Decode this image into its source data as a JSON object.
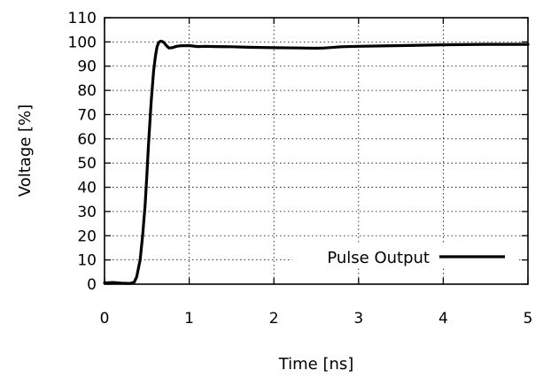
{
  "chart_data": {
    "type": "line",
    "xlabel": "Time [ns]",
    "ylabel": "Voltage [%]",
    "xlim": [
      0,
      5
    ],
    "ylim": [
      0,
      110
    ],
    "x_ticks": [
      0,
      1,
      2,
      3,
      4,
      5
    ],
    "y_ticks": [
      0,
      10,
      20,
      30,
      40,
      50,
      60,
      70,
      80,
      90,
      100,
      110
    ],
    "grid": true,
    "legend_position": "bottom-right",
    "series": [
      {
        "name": "Pulse Output",
        "color": "#000000",
        "x": [
          0,
          0.1,
          0.2,
          0.3,
          0.35,
          0.38,
          0.42,
          0.45,
          0.48,
          0.5,
          0.52,
          0.55,
          0.58,
          0.6,
          0.62,
          0.64,
          0.66,
          0.68,
          0.7,
          0.73,
          0.76,
          0.8,
          0.85,
          0.9,
          1.0,
          1.1,
          1.2,
          1.3,
          1.5,
          1.7,
          2.0,
          2.3,
          2.5,
          2.6,
          2.8,
          3.0,
          3.5,
          4.0,
          4.5,
          5.0
        ],
        "y": [
          0.5,
          0.7,
          0.4,
          0.3,
          0.8,
          3,
          10,
          20,
          33,
          45,
          58,
          75,
          88,
          94,
          98,
          99.8,
          100.3,
          100.2,
          99.8,
          98.5,
          97.5,
          97.6,
          98.2,
          98.4,
          98.5,
          98.1,
          98.2,
          98.1,
          98.0,
          97.8,
          97.6,
          97.5,
          97.4,
          97.5,
          98.0,
          98.2,
          98.5,
          98.8,
          99.0,
          99.0
        ]
      }
    ]
  }
}
